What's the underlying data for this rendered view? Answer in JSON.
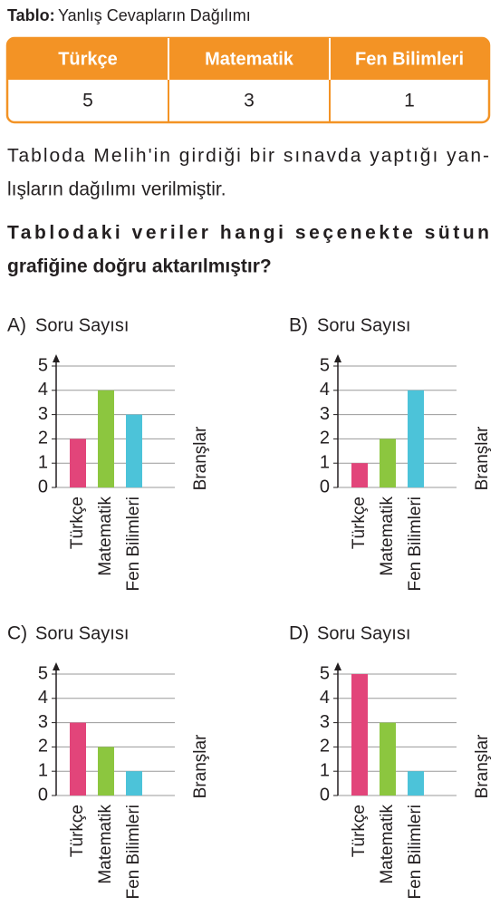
{
  "table": {
    "title_label": "Tablo:",
    "title_text": "Yanlış Cevapların Dağılımı",
    "header": [
      "Türkçe",
      "Matematik",
      "Fen Bilimleri"
    ],
    "row": [
      "5",
      "3",
      "1"
    ]
  },
  "paragraph": [
    "Tabloda Melih'in girdiği bir sınavda yaptığı yan-",
    "lışların dağılımı verilmiştir."
  ],
  "question": [
    "Tablodaki veriler hangi seçenekte sütun",
    "grafiğine doğru aktarılmıştır?"
  ],
  "chart_data": [
    {
      "type": "bar",
      "option": "A)",
      "y_label": "Soru Sayısı",
      "x_label": "Branşlar",
      "categories": [
        "Türkçe",
        "Matematik",
        "Fen Bilimleri"
      ],
      "values": [
        2,
        4,
        3
      ],
      "colors": [
        "#e2457a",
        "#8cc63f",
        "#4cc3d9"
      ],
      "ylim": [
        0,
        5
      ],
      "yticks": [
        0,
        1,
        2,
        3,
        4,
        5
      ],
      "grid": true
    },
    {
      "type": "bar",
      "option": "B)",
      "y_label": "Soru Sayısı",
      "x_label": "Branşlar",
      "categories": [
        "Türkçe",
        "Matematik",
        "Fen Bilimleri"
      ],
      "values": [
        1,
        2,
        4
      ],
      "colors": [
        "#e2457a",
        "#8cc63f",
        "#4cc3d9"
      ],
      "ylim": [
        0,
        5
      ],
      "yticks": [
        0,
        1,
        2,
        3,
        4,
        5
      ],
      "grid": true
    },
    {
      "type": "bar",
      "option": "C)",
      "y_label": "Soru Sayısı",
      "x_label": "Branşlar",
      "categories": [
        "Türkçe",
        "Matematik",
        "Fen Bilimleri"
      ],
      "values": [
        3,
        2,
        1
      ],
      "colors": [
        "#e2457a",
        "#8cc63f",
        "#4cc3d9"
      ],
      "ylim": [
        0,
        5
      ],
      "yticks": [
        0,
        1,
        2,
        3,
        4,
        5
      ],
      "grid": true
    },
    {
      "type": "bar",
      "option": "D)",
      "y_label": "Soru Sayısı",
      "x_label": "Branşlar",
      "categories": [
        "Türkçe",
        "Matematik",
        "Fen Bilimleri"
      ],
      "values": [
        5,
        3,
        1
      ],
      "colors": [
        "#e2457a",
        "#8cc63f",
        "#4cc3d9"
      ],
      "ylim": [
        0,
        5
      ],
      "yticks": [
        0,
        1,
        2,
        3,
        4,
        5
      ],
      "grid": true
    }
  ]
}
